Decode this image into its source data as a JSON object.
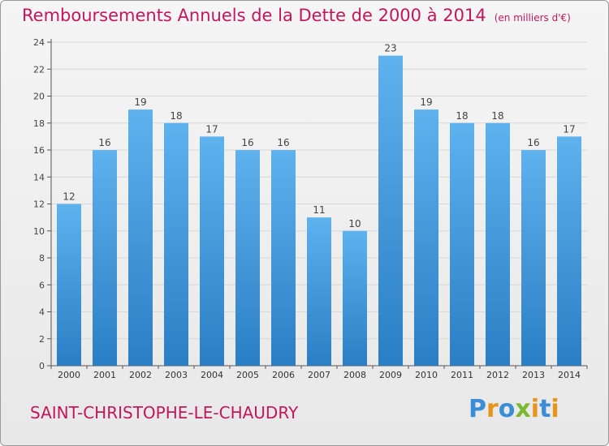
{
  "title": {
    "main": "Remboursements Annuels de la Dette de 2000 à 2014",
    "unit": "(en milliers d'€)"
  },
  "commune": "SAINT-CHRISTOPHE-LE-CHAUDRY",
  "logo": {
    "text": "Proxiti",
    "letters": [
      {
        "char": "P",
        "color": "#3b8ed6"
      },
      {
        "char": "r",
        "color": "#e8941a"
      },
      {
        "char": "o",
        "color": "#3b8ed6"
      },
      {
        "char": "x",
        "color": "#7cb82f"
      },
      {
        "char": "i",
        "color": "#e8941a"
      },
      {
        "char": "t",
        "color": "#3b8ed6"
      },
      {
        "char": "i",
        "color": "#e8941a"
      }
    ]
  },
  "colors": {
    "bar_top": "#5eb2ee",
    "bar_bottom": "#2a7ec4",
    "title": "#c2185b",
    "grid": "#d8d8d8",
    "axis": "#555555"
  },
  "chart_data": {
    "type": "bar",
    "categories": [
      "2000",
      "2001",
      "2002",
      "2003",
      "2004",
      "2005",
      "2006",
      "2007",
      "2008",
      "2009",
      "2010",
      "2011",
      "2012",
      "2013",
      "2014"
    ],
    "values": [
      12,
      16,
      19,
      18,
      17,
      16,
      16,
      11,
      10,
      23,
      19,
      18,
      18,
      16,
      17
    ],
    "data_labels": [
      "12",
      "16",
      "19",
      "18",
      "17",
      "16",
      "16",
      "11",
      "10",
      "23",
      "19",
      "18",
      "18",
      "16",
      "17"
    ],
    "yticks": [
      "0",
      "2",
      "4",
      "6",
      "8",
      "10",
      "12",
      "14",
      "16",
      "18",
      "20",
      "22",
      "24"
    ],
    "ylim": [
      0,
      24
    ],
    "grid": true,
    "title": "Remboursements Annuels de la Dette de 2000 à 2014",
    "ylabel": "",
    "xlabel": ""
  }
}
